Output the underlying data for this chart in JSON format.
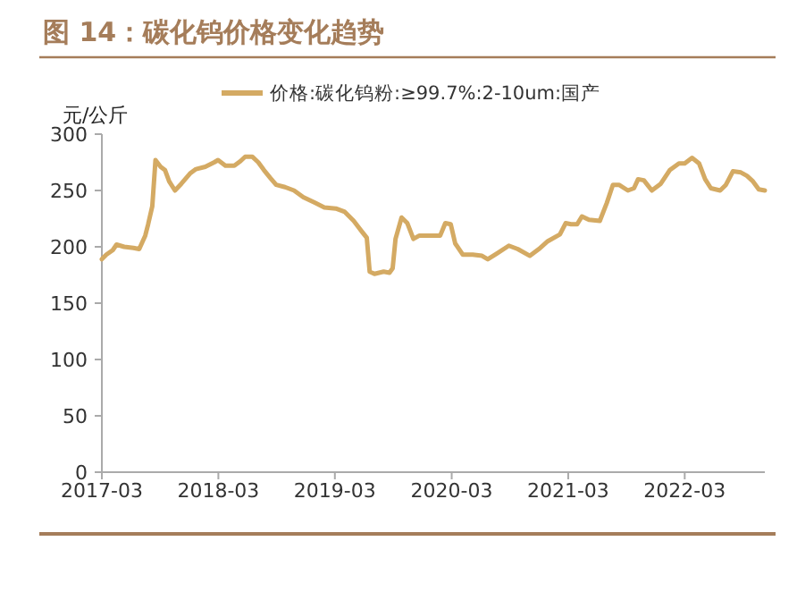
{
  "chart_data": {
    "type": "line",
    "title": "图 14：碳化钨价格变化趋势",
    "ylabel": "元/公斤",
    "legend": "top",
    "grid": false,
    "marker": "none",
    "line_style": "solid",
    "xlim": [
      "2017-03-01",
      "2022-11-07"
    ],
    "xticks": [
      "2017-03",
      "2018-03",
      "2019-03",
      "2020-03",
      "2021-03",
      "2022-03"
    ],
    "ylim": [
      0,
      300
    ],
    "yticks": [
      0,
      50,
      100,
      150,
      200,
      250,
      300
    ],
    "series": [
      {
        "name": "价格:碳化钨粉:≥99.7%:2-10um:国产",
        "color": "#d4aa63",
        "x": [
          "2017-03-01",
          "2017-03-15",
          "2017-04-04",
          "2017-04-16",
          "2017-05-10",
          "2017-06-08",
          "2017-06-26",
          "2017-07-15",
          "2017-07-24",
          "2017-08-06",
          "2017-08-16",
          "2017-09-01",
          "2017-09-15",
          "2017-09-28",
          "2017-10-16",
          "2017-11-05",
          "2017-12-02",
          "2017-12-21",
          "2018-01-19",
          "2018-02-16",
          "2018-02-28",
          "2018-03-23",
          "2018-04-20",
          "2018-05-09",
          "2018-05-24",
          "2018-06-15",
          "2018-07-04",
          "2018-07-22",
          "2018-08-11",
          "2018-08-29",
          "2018-09-26",
          "2018-10-24",
          "2018-11-22",
          "2018-12-29",
          "2019-01-27",
          "2019-03-04",
          "2019-04-01",
          "2019-04-29",
          "2019-05-26",
          "2019-06-09",
          "2019-06-18",
          "2019-07-03",
          "2019-08-01",
          "2019-08-19",
          "2019-08-29",
          "2019-09-07",
          "2019-09-26",
          "2019-10-14",
          "2019-11-02",
          "2019-11-21",
          "2019-12-18",
          "2020-01-25",
          "2020-02-10",
          "2020-02-27",
          "2020-03-12",
          "2020-04-05",
          "2020-05-06",
          "2020-06-04",
          "2020-06-22",
          "2020-07-20",
          "2020-08-27",
          "2020-09-24",
          "2020-11-01",
          "2020-11-29",
          "2020-12-27",
          "2021-02-03",
          "2021-02-21",
          "2021-03-10",
          "2021-03-29",
          "2021-04-13",
          "2021-05-05",
          "2021-06-08",
          "2021-06-30",
          "2021-07-19",
          "2021-08-07",
          "2021-09-04",
          "2021-09-23",
          "2021-10-06",
          "2021-10-24",
          "2021-11-18",
          "2021-12-16",
          "2022-01-13",
          "2022-02-11",
          "2022-03-01",
          "2022-03-24",
          "2022-04-15",
          "2022-05-04",
          "2022-05-22",
          "2022-06-20",
          "2022-07-08",
          "2022-07-30",
          "2022-08-24",
          "2022-09-12",
          "2022-10-01",
          "2022-10-19",
          "2022-11-07"
        ],
        "values": [
          189,
          193,
          197,
          202,
          200,
          199,
          198,
          210,
          220,
          236,
          277,
          271,
          268,
          258,
          250,
          256,
          265,
          269,
          271,
          275,
          277,
          272,
          272,
          276,
          280,
          280,
          275,
          268,
          261,
          255,
          253,
          250,
          244,
          239,
          235,
          234,
          231,
          223,
          213,
          208,
          178,
          176,
          178,
          177,
          181,
          207,
          226,
          221,
          207,
          210,
          210,
          210,
          221,
          220,
          203,
          193,
          193,
          192,
          189,
          194,
          201,
          198,
          192,
          198,
          205,
          211,
          221,
          220,
          220,
          227,
          224,
          223,
          239,
          255,
          255,
          250,
          252,
          260,
          259,
          250,
          256,
          268,
          274,
          274,
          279,
          274,
          260,
          252,
          250,
          255,
          267,
          266,
          263,
          258,
          251,
          250
        ]
      }
    ]
  }
}
